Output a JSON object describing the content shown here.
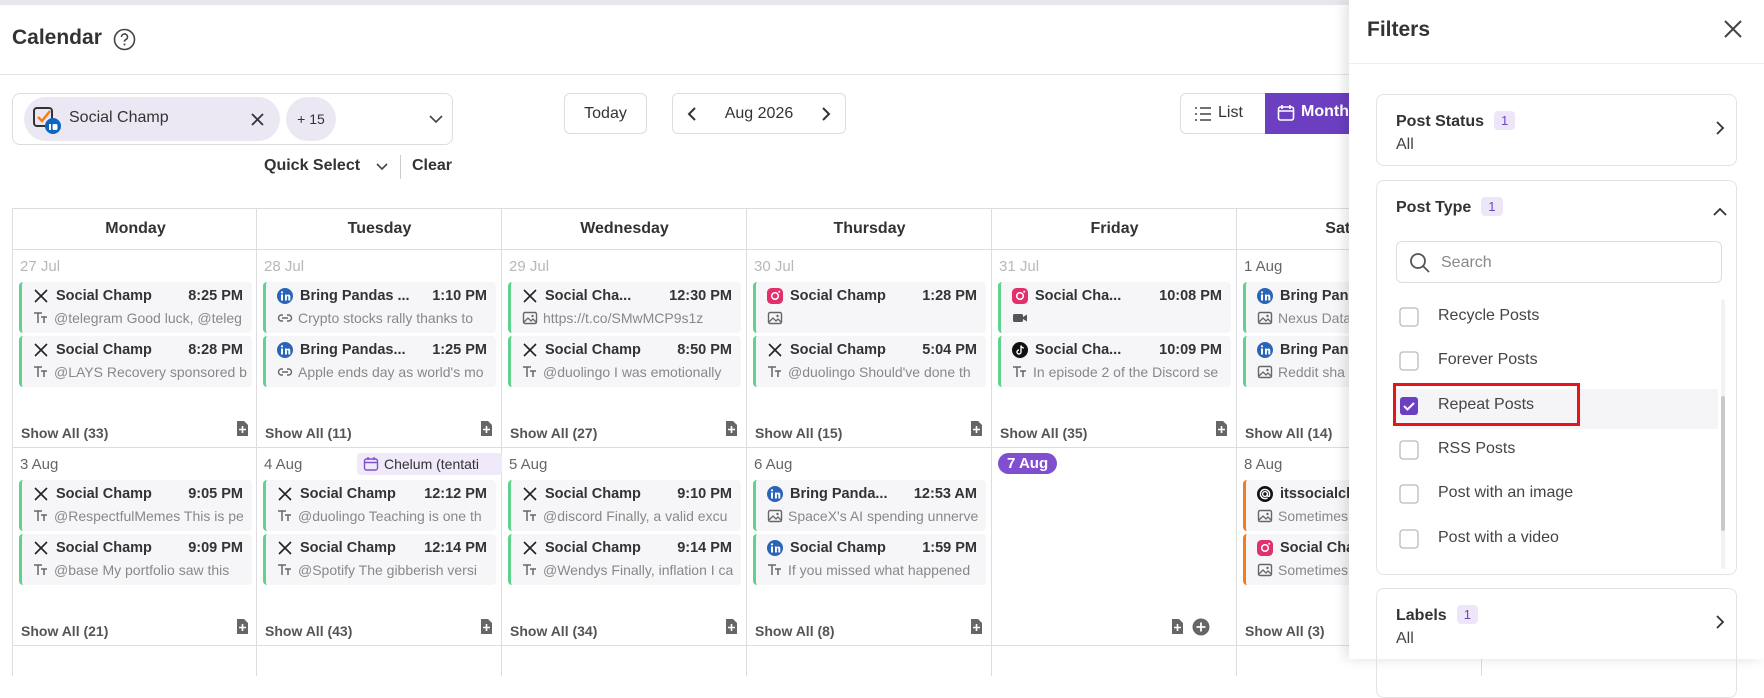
{
  "header": {
    "title": "Calendar"
  },
  "toolbar": {
    "account": "Social Champ",
    "more_accounts": "+ 15",
    "today": "Today",
    "period": "Aug 2026",
    "views": [
      "List",
      "Month"
    ],
    "quick_select": "Quick Select",
    "clear": "Clear"
  },
  "calendar": {
    "weekdays": [
      "Monday",
      "Tuesday",
      "Wednesday",
      "Thursday",
      "Friday",
      "Saturday"
    ],
    "weeks": [
      {
        "days": [
          {
            "date": "27 Jul",
            "outside_month": true,
            "posts": [
              {
                "network": "x",
                "account": "Social Champ",
                "time": "8:25 PM",
                "media": "text",
                "text": "@telegram Good luck, @teleg"
              },
              {
                "network": "x",
                "account": "Social Champ",
                "time": "8:28 PM",
                "media": "text",
                "text": "@LAYS Recovery sponsored b"
              }
            ],
            "show_all": "Show All (33)"
          },
          {
            "date": "28 Jul",
            "outside_month": true,
            "posts": [
              {
                "network": "linkedin",
                "account": "Bring Pandas ...",
                "time": "1:10 PM",
                "media": "link",
                "text": "Crypto stocks rally thanks to"
              },
              {
                "network": "linkedin",
                "account": "Bring Pandas...",
                "time": "1:25 PM",
                "media": "link",
                "text": "Apple ends day as world's mo"
              }
            ],
            "show_all": "Show All (11)"
          },
          {
            "date": "29 Jul",
            "outside_month": true,
            "posts": [
              {
                "network": "x",
                "account": "Social Cha...",
                "time": "12:30 PM",
                "media": "image",
                "text": "https://t.co/SMwMCP9s1z"
              },
              {
                "network": "x",
                "account": "Social Champ",
                "time": "8:50 PM",
                "media": "text",
                "text": "@duolingo I was emotionally"
              }
            ],
            "show_all": "Show All (27)"
          },
          {
            "date": "30 Jul",
            "outside_month": true,
            "posts": [
              {
                "network": "instagram",
                "account": "Social Champ",
                "time": "1:28 PM",
                "media": "image"
              },
              {
                "network": "x",
                "account": "Social Champ",
                "time": "5:04 PM",
                "media": "text",
                "text": "@duolingo Should've done th"
              }
            ],
            "show_all": "Show All (15)"
          },
          {
            "date": "31 Jul",
            "outside_month": true,
            "posts": [
              {
                "network": "instagram",
                "account": "Social Cha...",
                "time": "10:08 PM",
                "media": "video"
              },
              {
                "network": "tiktok",
                "account": "Social Cha...",
                "time": "10:09 PM",
                "media": "text",
                "text": "In episode 2 of the Discord se"
              }
            ],
            "show_all": "Show All (35)"
          },
          {
            "date": "1 Aug",
            "outside_month": false,
            "posts": [
              {
                "network": "linkedin",
                "account": "Bring Pand",
                "media": "image",
                "text": "Nexus Data"
              },
              {
                "network": "linkedin",
                "account": "Bring Pand",
                "media": "image",
                "text": "Reddit sha"
              }
            ],
            "show_all": "Show All (14)"
          }
        ]
      },
      {
        "days": [
          {
            "date": "3 Aug",
            "outside_month": false,
            "posts": [
              {
                "network": "x",
                "account": "Social Champ",
                "time": "9:05 PM",
                "media": "text",
                "text": "@RespectfulMemes This is pe"
              },
              {
                "network": "x",
                "account": "Social Champ",
                "time": "9:09 PM",
                "media": "text",
                "text": "@base My portfolio saw this"
              }
            ],
            "show_all": "Show All (21)"
          },
          {
            "date": "4 Aug",
            "outside_month": false,
            "event": "Chelum (tentati",
            "posts": [
              {
                "network": "x",
                "account": "Social Champ",
                "time": "12:12 PM",
                "media": "text",
                "text": "@duolingo Teaching is one th"
              },
              {
                "network": "x",
                "account": "Social Champ",
                "time": "12:14 PM",
                "media": "text",
                "text": "@Spotify The gibberish versi"
              }
            ],
            "show_all": "Show All (43)"
          },
          {
            "date": "5 Aug",
            "outside_month": false,
            "posts": [
              {
                "network": "x",
                "account": "Social Champ",
                "time": "9:10 PM",
                "media": "text",
                "text": "@discord Finally, a valid excu"
              },
              {
                "network": "x",
                "account": "Social Champ",
                "time": "9:14 PM",
                "media": "text",
                "text": "@Wendys Finally, inflation I ca"
              }
            ],
            "show_all": "Show All (34)"
          },
          {
            "date": "6 Aug",
            "outside_month": false,
            "posts": [
              {
                "network": "linkedin",
                "account": "Bring Panda...",
                "time": "12:53 AM",
                "media": "image",
                "text": "SpaceX's AI spending unnerve"
              },
              {
                "network": "linkedin",
                "account": "Social Champ",
                "time": "1:59 PM",
                "media": "text",
                "text": "If you missed what happened"
              }
            ],
            "show_all": "Show All (8)"
          },
          {
            "date": "7 Aug",
            "outside_month": false,
            "today": true,
            "posts": []
          },
          {
            "date": "8 Aug",
            "outside_month": false,
            "posts": [
              {
                "network": "threads",
                "account": "itssocialch",
                "media": "image",
                "text": "Sometimes",
                "color": "#f47c20"
              },
              {
                "network": "instagram",
                "account": "Social Cha",
                "media": "image",
                "text": "Sometimes",
                "color": "#f47c20"
              }
            ],
            "show_all": "Show All (3)"
          }
        ]
      }
    ]
  },
  "filters": {
    "title": "Filters",
    "sections": [
      {
        "label": "Post Status",
        "count": 1,
        "value": "All"
      },
      {
        "label": "Post Type",
        "count": 1,
        "search_placeholder": "Search",
        "options": [
          {
            "label": "Recycle Posts",
            "checked": false
          },
          {
            "label": "Forever Posts",
            "checked": false
          },
          {
            "label": "Repeat Posts",
            "checked": true,
            "highlighted": true
          },
          {
            "label": "RSS Posts",
            "checked": false
          },
          {
            "label": "Post with an image",
            "checked": false
          },
          {
            "label": "Post with a video",
            "checked": false
          }
        ]
      },
      {
        "label": "Labels",
        "count": 1,
        "value": "All"
      }
    ]
  }
}
